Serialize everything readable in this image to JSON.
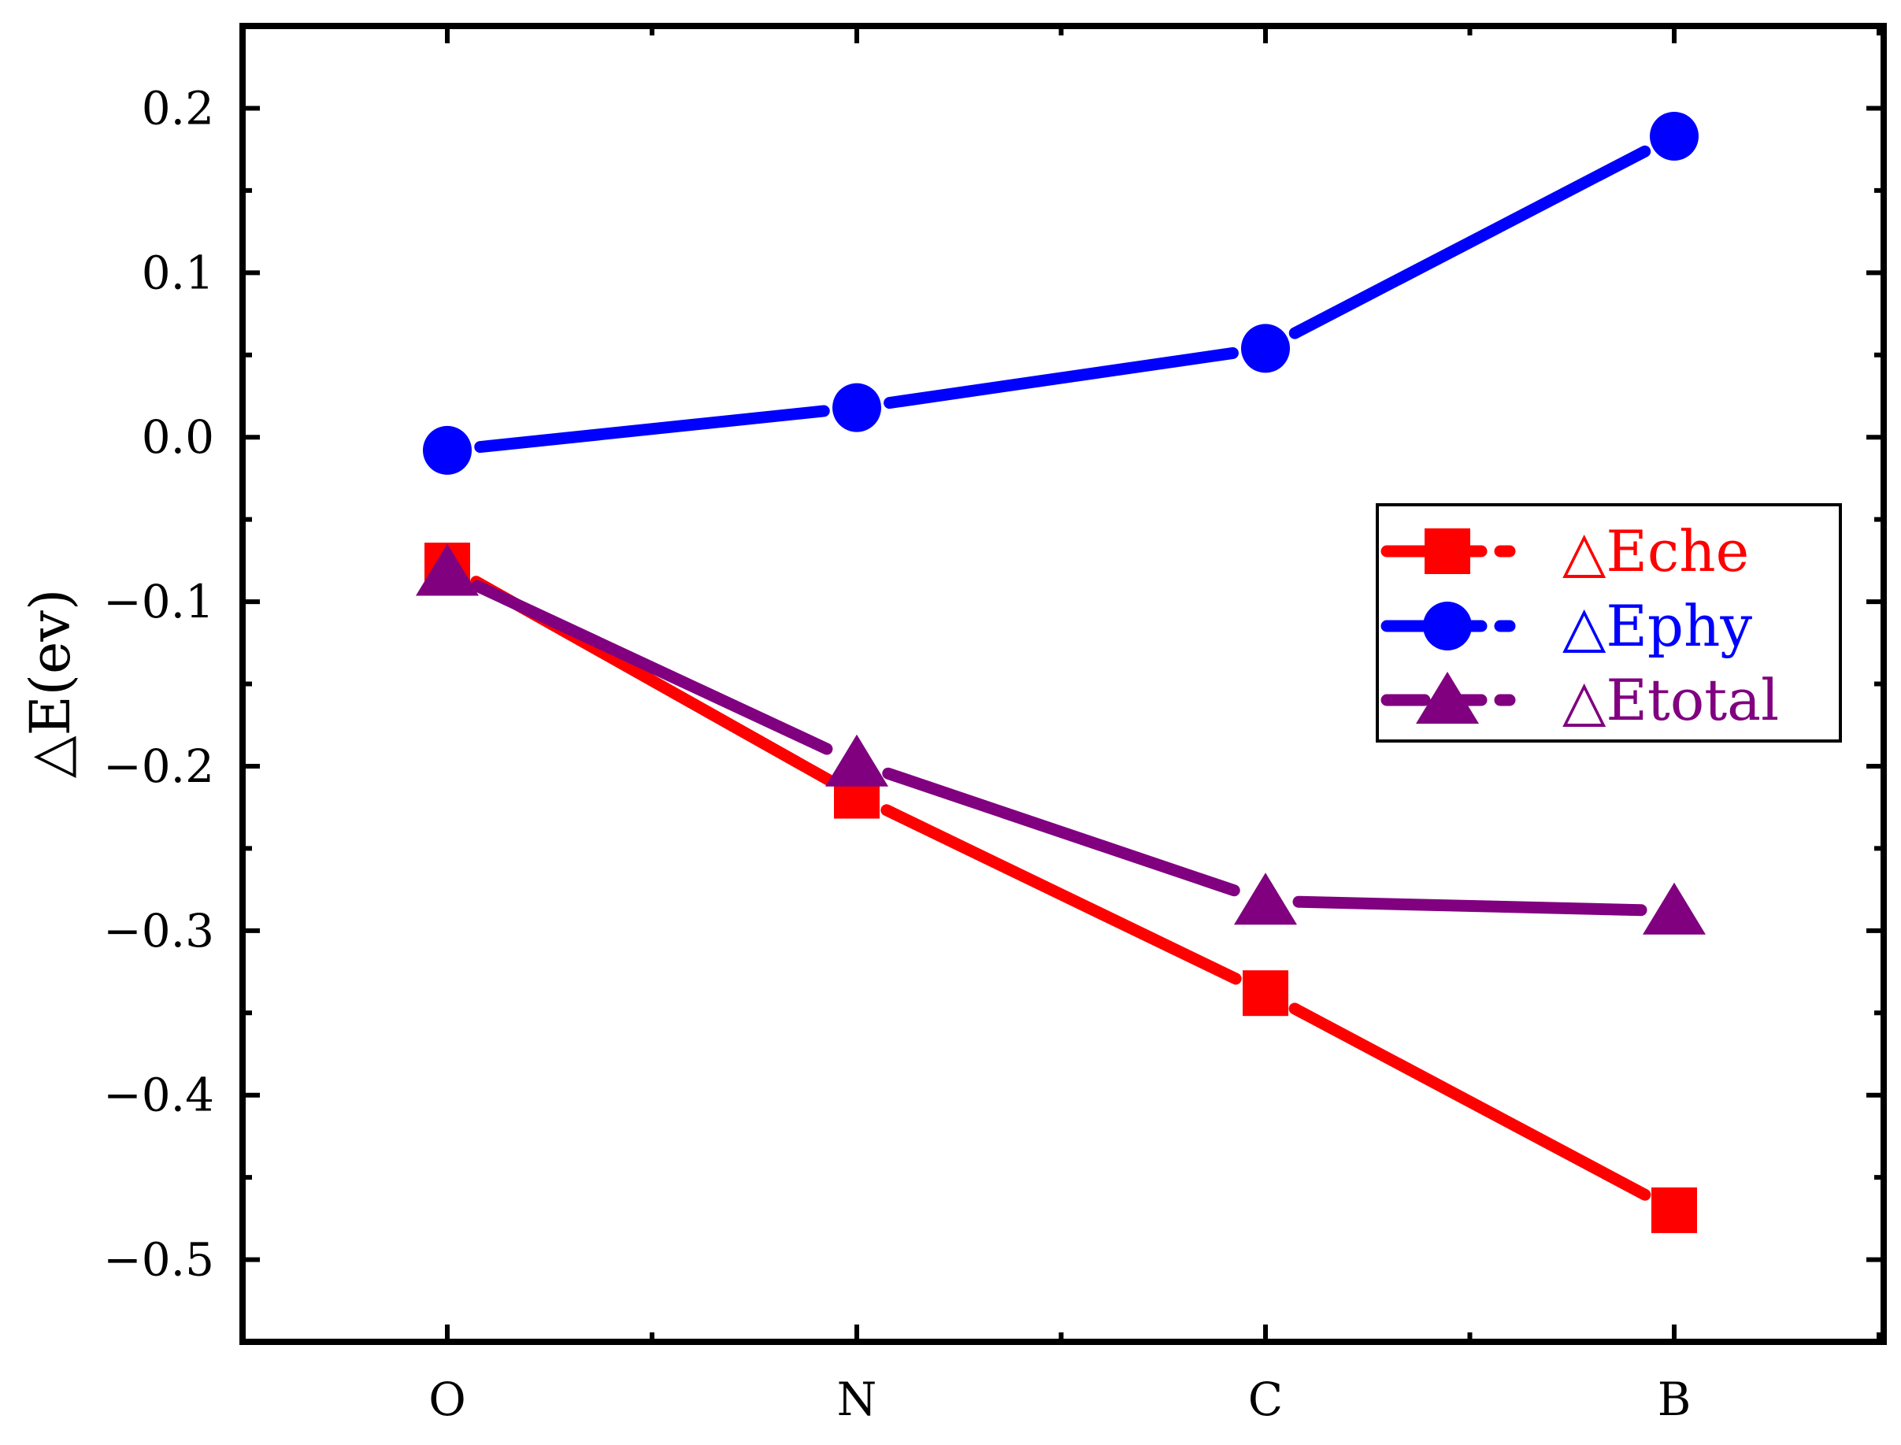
{
  "chart_data": {
    "type": "line",
    "title": "",
    "xlabel": "",
    "ylabel": "△E(ev)",
    "categories": [
      "O",
      "N",
      "C",
      "B"
    ],
    "ylim": [
      -0.55,
      0.25
    ],
    "yticks": [
      -0.5,
      -0.4,
      -0.3,
      -0.2,
      -0.1,
      0.0,
      0.1,
      0.2
    ],
    "ytick_labels": [
      "−0.5",
      "−0.4",
      "−0.3",
      "−0.2",
      "−0.1",
      "0.0",
      "0.1",
      "0.2"
    ],
    "grid": false,
    "legend_position": "right",
    "series": [
      {
        "name": "△Eche",
        "color": "#ff0000",
        "marker": "square",
        "values": [
          -0.078,
          -0.218,
          -0.338,
          -0.47
        ]
      },
      {
        "name": "△Ephy",
        "color": "#0000ff",
        "marker": "circle",
        "values": [
          -0.008,
          0.018,
          0.054,
          0.183
        ]
      },
      {
        "name": "△Etotal",
        "color": "#800080",
        "marker": "triangle",
        "values": [
          -0.082,
          -0.198,
          -0.282,
          -0.288
        ]
      }
    ]
  }
}
